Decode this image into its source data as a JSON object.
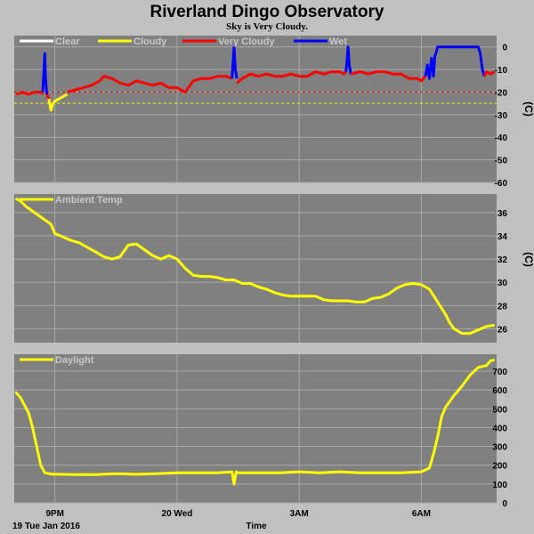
{
  "title": "Riverland Dingo Observatory",
  "subtitle": "Sky is Very Cloudy.",
  "x_axis": {
    "label": "Time",
    "date_label": "19 Tue Jan 2016",
    "ticks": [
      {
        "label": "9PM",
        "t": 0
      },
      {
        "label": "20 Wed",
        "t": 3
      },
      {
        "label": "3AM",
        "t": 6
      },
      {
        "label": "6AM",
        "t": 9
      }
    ],
    "t_range": [
      -1.0,
      10.85
    ]
  },
  "colors": {
    "background": "#c0c0c0",
    "plot": "#808080",
    "grid": "#a9a9a9",
    "clear": "#ffffff",
    "cloudy": "#ffff00",
    "very_cloudy": "#ff0000",
    "wet": "#0000ff",
    "temp": "#ffff00",
    "daylight": "#ffff00"
  },
  "chart_data": [
    {
      "type": "line",
      "panel": "sky",
      "unit_label": "(C)",
      "legend": [
        "Clear",
        "Cloudy",
        "Very Cloudy",
        "Wet"
      ],
      "ylim": [
        -60,
        5
      ],
      "yticks": [
        0,
        -10,
        -20,
        -30,
        -40,
        -50,
        -60
      ],
      "thresholds": [
        {
          "y": -20,
          "color_key": "very_cloudy"
        },
        {
          "y": -25,
          "color_key": "cloudy"
        }
      ],
      "series": [
        {
          "name": "Very Cloudy",
          "color_key": "very_cloudy",
          "x": [
            -0.95,
            -0.8,
            -0.65,
            -0.5,
            -0.35,
            -0.3
          ],
          "y": [
            -21,
            -20,
            -21,
            -20,
            -20,
            -21
          ]
        },
        {
          "name": "Wet",
          "color_key": "wet",
          "x": [
            -0.3,
            -0.27,
            -0.25,
            -0.23,
            -0.2
          ],
          "y": [
            -20,
            -10,
            -3,
            -14,
            -21
          ]
        },
        {
          "name": "Very Cloudy",
          "color_key": "very_cloudy",
          "x": [
            -0.2,
            -0.15
          ],
          "y": [
            -21,
            -23
          ]
        },
        {
          "name": "Cloudy",
          "color_key": "cloudy",
          "x": [
            -0.15,
            -0.1,
            -0.05,
            0.0,
            0.1,
            0.2,
            0.3
          ],
          "y": [
            -23,
            -28,
            -25,
            -24,
            -23,
            -22,
            -21
          ]
        },
        {
          "name": "Very Cloudy",
          "color_key": "very_cloudy",
          "x": [
            0.3,
            0.5,
            0.7,
            0.9,
            1.1,
            1.2,
            1.4,
            1.6,
            1.8,
            2.0,
            2.2,
            2.4,
            2.6,
            2.8,
            3.0,
            3.2,
            3.4,
            3.6,
            3.8,
            4.0,
            4.2,
            4.35
          ],
          "y": [
            -20,
            -19,
            -18,
            -17,
            -15,
            -13,
            -14,
            -16,
            -17,
            -15,
            -16,
            -17,
            -16,
            -18,
            -18,
            -20,
            -15,
            -14,
            -14,
            -13,
            -13,
            -14
          ]
        },
        {
          "name": "Wet",
          "color_key": "wet",
          "x": [
            4.35,
            4.38,
            4.4,
            4.43,
            4.47
          ],
          "y": [
            -14,
            -5,
            0,
            -10,
            -14
          ]
        },
        {
          "name": "Very Cloudy",
          "color_key": "very_cloudy",
          "x": [
            4.47,
            4.6,
            4.8,
            5.0,
            5.2,
            5.4,
            5.6,
            5.8,
            6.0,
            6.2,
            6.4,
            6.6,
            6.8,
            7.0,
            7.1,
            7.15
          ],
          "y": [
            -16,
            -14,
            -12,
            -13,
            -12,
            -13,
            -13,
            -12,
            -13,
            -13,
            -11,
            -12,
            -11,
            -11,
            -12,
            -11
          ]
        },
        {
          "name": "Wet",
          "color_key": "wet",
          "x": [
            7.15,
            7.18,
            7.2,
            7.23,
            7.27
          ],
          "y": [
            -11,
            -5,
            0,
            -8,
            -12
          ]
        },
        {
          "name": "Very Cloudy",
          "color_key": "very_cloudy",
          "x": [
            7.27,
            7.5,
            7.7,
            7.9,
            8.1,
            8.3,
            8.5,
            8.7,
            8.9,
            9.0,
            9.1
          ],
          "y": [
            -12,
            -11,
            -12,
            -11,
            -11,
            -12,
            -12,
            -14,
            -14,
            -15,
            -13
          ]
        },
        {
          "name": "Wet",
          "color_key": "wet",
          "x": [
            9.1,
            9.15,
            9.2,
            9.25,
            9.3,
            9.33,
            9.36,
            9.4,
            9.5,
            9.7,
            9.9,
            10.1,
            10.3,
            10.4,
            10.45,
            10.5,
            10.55
          ],
          "y": [
            -13,
            -8,
            -14,
            -5,
            -13,
            -4,
            -3,
            0,
            0,
            0,
            0,
            0,
            0,
            0,
            -3,
            -10,
            -13
          ]
        },
        {
          "name": "Very Cloudy",
          "color_key": "very_cloudy",
          "x": [
            10.55,
            10.6,
            10.7,
            10.8
          ],
          "y": [
            -13,
            -11,
            -12,
            -11
          ]
        }
      ]
    },
    {
      "type": "line",
      "panel": "temp",
      "legend": [
        "Ambient Temp"
      ],
      "unit_label": "(C)",
      "ylim": [
        24.8,
        37.6
      ],
      "yticks": [
        26,
        28,
        30,
        32,
        34,
        36
      ],
      "series": [
        {
          "name": "Ambient Temp",
          "color_key": "temp",
          "x": [
            -0.97,
            -0.85,
            -0.7,
            -0.5,
            -0.3,
            -0.1,
            0.0,
            0.2,
            0.4,
            0.6,
            0.8,
            1.0,
            1.2,
            1.4,
            1.6,
            1.8,
            2.0,
            2.2,
            2.4,
            2.6,
            2.8,
            3.0,
            3.2,
            3.4,
            3.6,
            3.8,
            4.0,
            4.2,
            4.4,
            4.6,
            4.8,
            5.0,
            5.2,
            5.4,
            5.6,
            5.8,
            6.0,
            6.2,
            6.4,
            6.6,
            6.8,
            7.0,
            7.2,
            7.4,
            7.6,
            7.8,
            8.0,
            8.2,
            8.4,
            8.6,
            8.8,
            9.0,
            9.2,
            9.4,
            9.6,
            9.7,
            9.8,
            9.9,
            10.0,
            10.2,
            10.4,
            10.6,
            10.8
          ],
          "y": [
            37.2,
            37.0,
            36.5,
            36.0,
            35.5,
            35.0,
            34.2,
            33.9,
            33.6,
            33.4,
            33.0,
            32.6,
            32.2,
            32.0,
            32.2,
            33.2,
            33.3,
            32.8,
            32.3,
            32.0,
            32.3,
            32.0,
            31.2,
            30.6,
            30.5,
            30.5,
            30.4,
            30.2,
            30.2,
            29.9,
            29.9,
            29.6,
            29.4,
            29.1,
            28.9,
            28.8,
            28.8,
            28.8,
            28.8,
            28.5,
            28.4,
            28.4,
            28.4,
            28.3,
            28.3,
            28.6,
            28.7,
            29.0,
            29.5,
            29.8,
            29.9,
            29.8,
            29.4,
            28.3,
            27.2,
            26.5,
            26.0,
            25.8,
            25.6,
            25.6,
            25.9,
            26.2,
            26.3
          ]
        }
      ]
    },
    {
      "type": "line",
      "panel": "daylight",
      "legend": [
        "Daylight"
      ],
      "ylim": [
        0,
        790
      ],
      "yticks": [
        0,
        100,
        200,
        300,
        400,
        500,
        600,
        700
      ],
      "series": [
        {
          "name": "Daylight",
          "color_key": "daylight",
          "x": [
            -0.97,
            -0.85,
            -0.75,
            -0.65,
            -0.55,
            -0.45,
            -0.35,
            -0.25,
            -0.15,
            -0.05,
            0.1,
            0.5,
            1.0,
            1.5,
            2.0,
            2.5,
            3.0,
            3.5,
            4.0,
            4.35,
            4.4,
            4.45,
            4.5,
            5.0,
            5.5,
            6.0,
            6.5,
            7.0,
            7.5,
            8.0,
            8.5,
            9.0,
            9.2,
            9.3,
            9.4,
            9.5,
            9.6,
            9.8,
            10.0,
            10.2,
            10.4,
            10.6,
            10.7,
            10.8
          ],
          "y": [
            590,
            560,
            520,
            480,
            400,
            300,
            200,
            160,
            155,
            152,
            152,
            150,
            150,
            155,
            152,
            155,
            160,
            160,
            160,
            165,
            100,
            165,
            160,
            160,
            160,
            165,
            160,
            165,
            160,
            160,
            160,
            165,
            185,
            260,
            350,
            460,
            510,
            570,
            620,
            680,
            720,
            730,
            755,
            760
          ]
        }
      ]
    }
  ]
}
